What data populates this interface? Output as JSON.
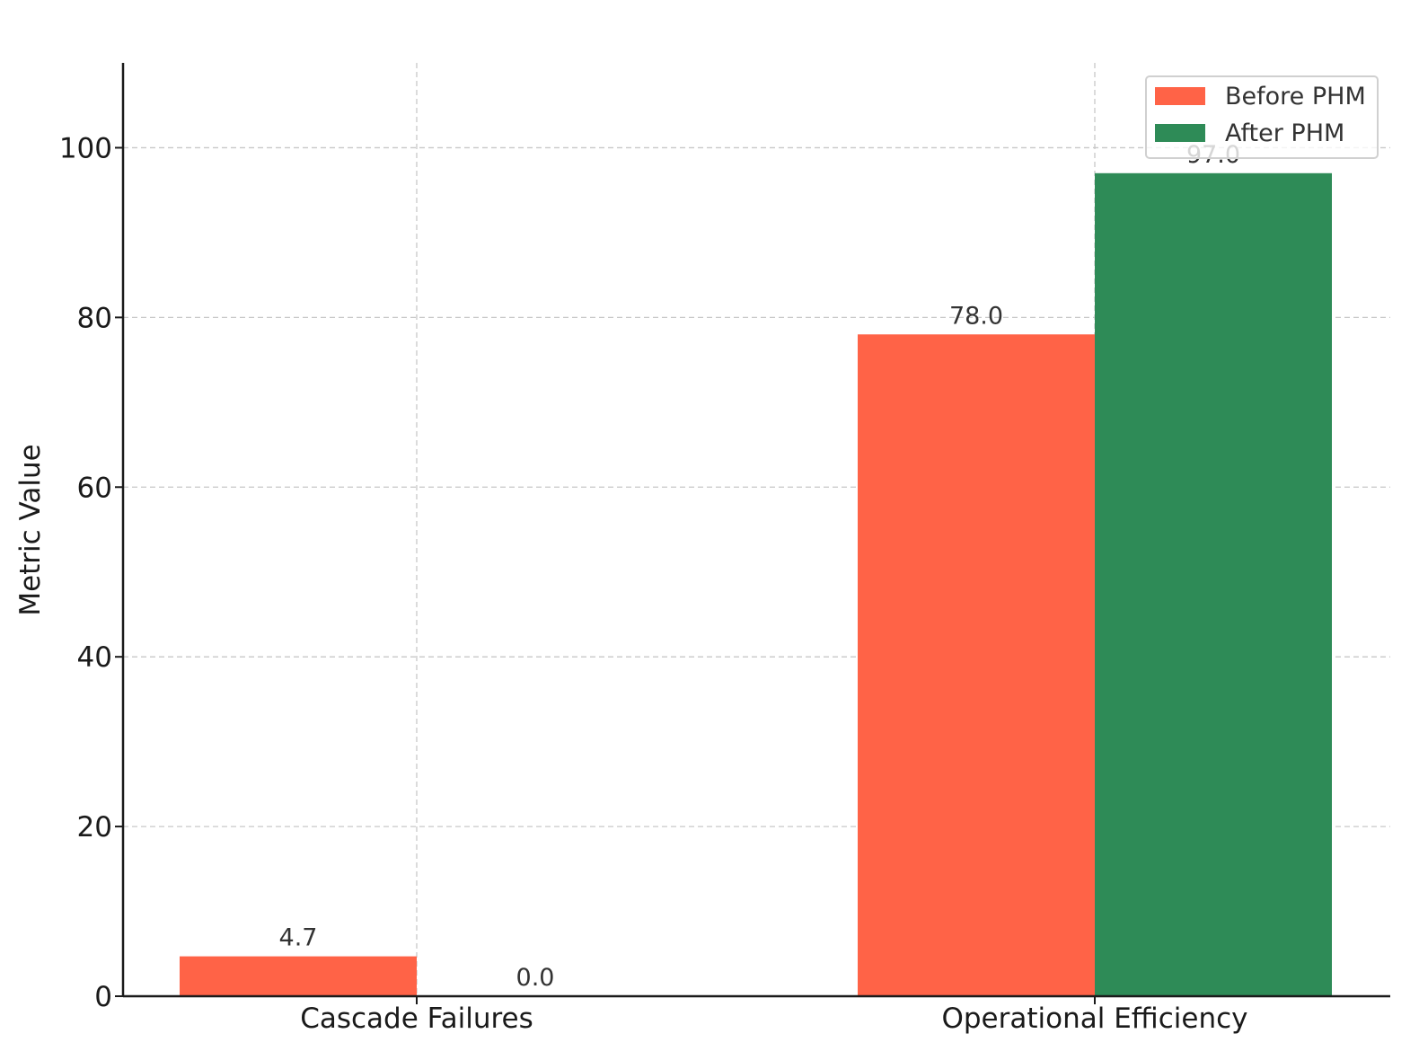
{
  "chart_data": {
    "type": "bar",
    "categories": [
      "Cascade Failures",
      "Operational Efficiency"
    ],
    "series": [
      {
        "name": "Before PHM",
        "values": [
          4.7,
          78.0
        ],
        "color": "#ff6347"
      },
      {
        "name": "After PHM",
        "values": [
          0.0,
          97.0
        ],
        "color": "#2e8b57"
      }
    ],
    "data_labels": [
      [
        "4.7",
        "78.0"
      ],
      [
        "0.0",
        "97.0"
      ]
    ],
    "title": "",
    "xlabel": "",
    "ylabel": "Metric Value",
    "ylim": [
      0,
      110
    ],
    "yticks": [
      0,
      20,
      40,
      60,
      80,
      100
    ],
    "grid": true,
    "legend_position": "top-right"
  }
}
